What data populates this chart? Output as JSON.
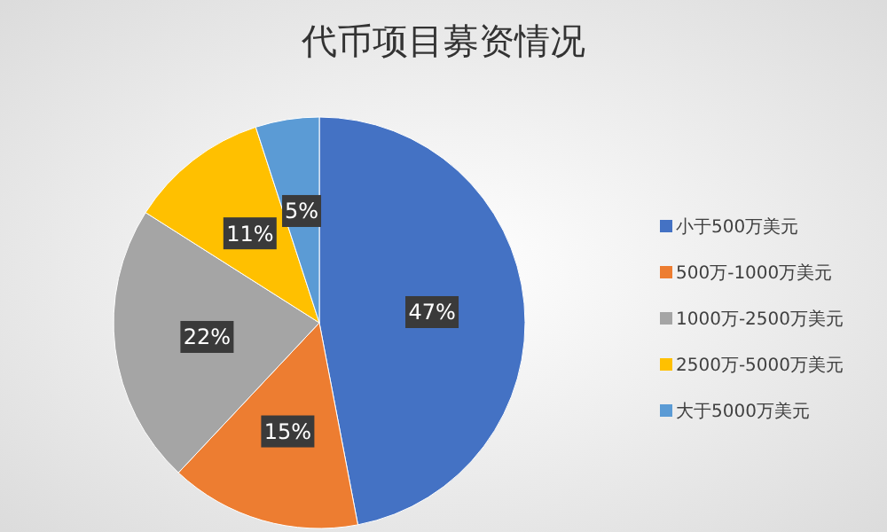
{
  "chart_data": {
    "type": "pie",
    "title": "代币项目募资情况",
    "categories": [
      "小于500万美元",
      "500万-1000万美元",
      "1000万-2500万美元",
      "2500万-5000万美元",
      "大于5000万美元"
    ],
    "values": [
      47,
      15,
      22,
      11,
      5
    ],
    "colors": [
      "#4472c4",
      "#ed7d31",
      "#a5a5a5",
      "#ffc000",
      "#5b9bd5"
    ],
    "value_labels": [
      "47%",
      "15%",
      "22%",
      "11%",
      "5%"
    ],
    "legend": "right"
  }
}
